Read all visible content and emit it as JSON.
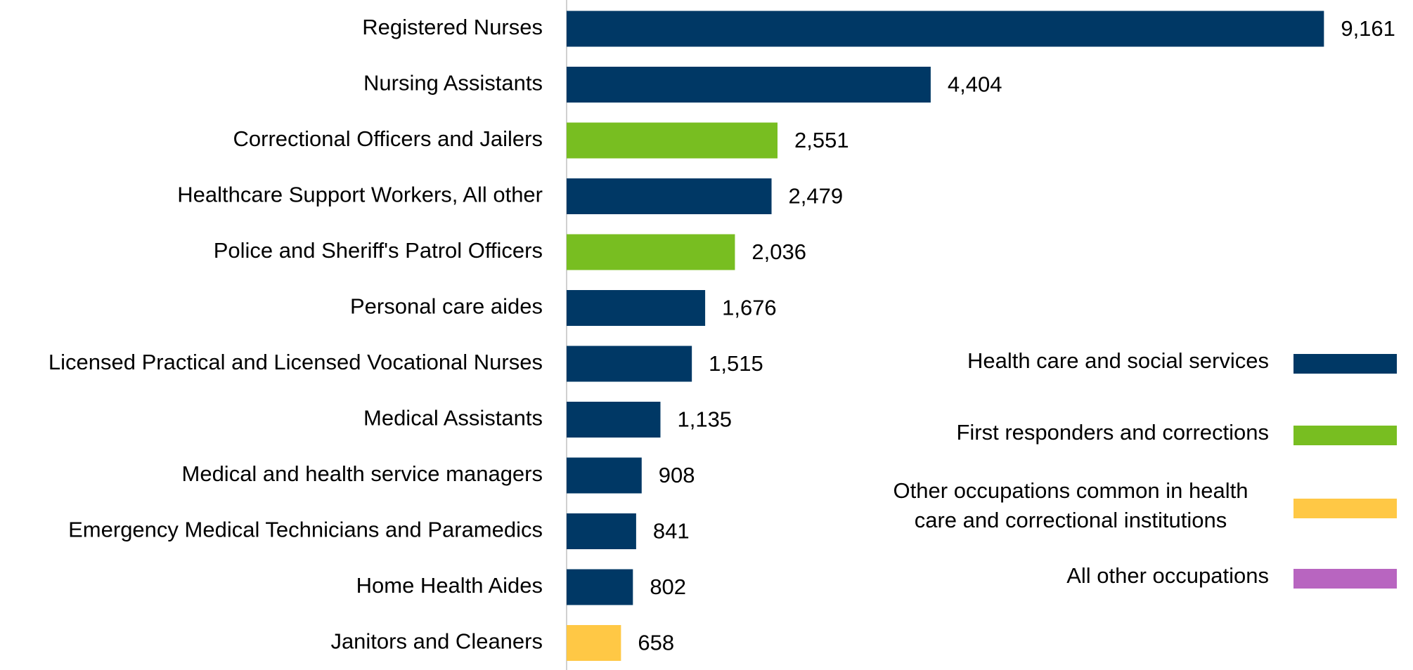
{
  "chart_data": {
    "type": "bar",
    "orientation": "horizontal",
    "categories": [
      "Registered Nurses",
      "Nursing Assistants",
      "Correctional Officers and Jailers",
      "Healthcare Support Workers, All other",
      "Police and Sheriff's Patrol Officers",
      "Personal care aides",
      "Licensed Practical and Licensed Vocational Nurses",
      "Medical Assistants",
      "Medical and health service managers",
      "Emergency Medical Technicians and Paramedics",
      "Home Health Aides",
      "Janitors and Cleaners"
    ],
    "values": [
      9161,
      4404,
      2551,
      2479,
      2036,
      1676,
      1515,
      1135,
      908,
      841,
      802,
      658
    ],
    "value_labels": [
      "9,161",
      "4,404",
      "2,551",
      "2,479",
      "2,036",
      "1,676",
      "1,515",
      "1,135",
      "908",
      "841",
      "802",
      "658"
    ],
    "colors": [
      "#003865",
      "#003865",
      "#78be21",
      "#003865",
      "#78be21",
      "#003865",
      "#003865",
      "#003865",
      "#003865",
      "#003865",
      "#003865",
      "#ffc845"
    ],
    "xlim": [
      0,
      10000
    ],
    "legend": [
      {
        "name": [
          "Health care and social services"
        ],
        "color": "#003865"
      },
      {
        "name": [
          "First responders and corrections"
        ],
        "color": "#78be21"
      },
      {
        "name": [
          "Other occupations common in health",
          "care and correctional institutions"
        ],
        "color": "#ffc845"
      },
      {
        "name": [
          "All other occupations"
        ],
        "color": "#b865c0"
      }
    ]
  }
}
